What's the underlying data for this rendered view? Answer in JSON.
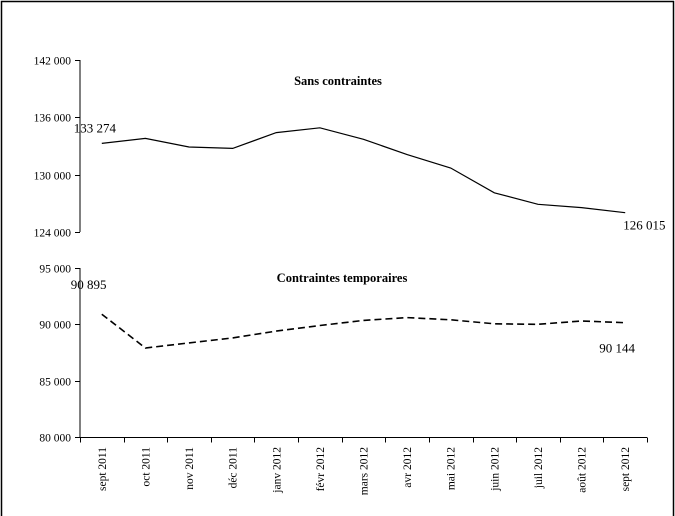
{
  "chart_data": [
    {
      "type": "line",
      "title": "Sans contraintes",
      "categories": [
        "sept 2011",
        "oct 2011",
        "nov 2011",
        "déc 2011",
        "janv 2012",
        "févr 2012",
        "mars 2012",
        "avr 2012",
        "mai 2012",
        "juin 2012",
        "juil 2012",
        "août 2012",
        "sept 2012"
      ],
      "series": [
        {
          "values": [
            133274,
            133800,
            132900,
            132750,
            134400,
            134900,
            133700,
            132100,
            130700,
            128100,
            126900,
            126550,
            126015
          ],
          "line_style": "solid"
        }
      ],
      "ylim": [
        124000,
        142000
      ],
      "yticks": [
        124000,
        130000,
        136000,
        142000
      ],
      "ytick_labels": [
        "124 000",
        "130 000",
        "136 000",
        "142 000"
      ],
      "data_labels": [
        {
          "index": 0,
          "text": "133 274"
        },
        {
          "index": 12,
          "text": "126 015"
        }
      ],
      "grid": false
    },
    {
      "type": "line",
      "title": "Contraintes temporaires",
      "categories": [
        "sept 2011",
        "oct 2011",
        "nov 2011",
        "déc 2011",
        "janv 2012",
        "févr 2012",
        "mars 2012",
        "avr 2012",
        "mai 2012",
        "juin 2012",
        "juil 2012",
        "août 2012",
        "sept 2012"
      ],
      "series": [
        {
          "values": [
            90895,
            87900,
            88350,
            88800,
            89400,
            89900,
            90350,
            90600,
            90400,
            90050,
            90000,
            90300,
            90144
          ],
          "line_style": "dashed"
        }
      ],
      "ylim": [
        80000,
        95000
      ],
      "yticks": [
        80000,
        85000,
        90000,
        95000
      ],
      "ytick_labels": [
        "80 000",
        "85 000",
        "90 000",
        "95 000"
      ],
      "data_labels": [
        {
          "index": 0,
          "text": "90 895"
        },
        {
          "index": 12,
          "text": "90 144"
        }
      ],
      "grid": false
    }
  ]
}
